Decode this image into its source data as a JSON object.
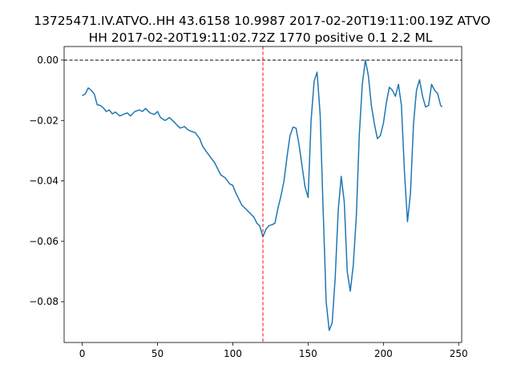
{
  "chart_data": {
    "type": "line",
    "title_lines": [
      "13725471.IV.ATVO..HH 43.6158 10.9987 2017-02-20T19:11:00.19Z ATVO",
      "HH 2017-02-20T19:11:02.72Z 1770 positive 0.1 2.2 ML"
    ],
    "xlabel": "",
    "ylabel": "",
    "xlim": [
      -12,
      252
    ],
    "ylim": [
      -0.0935,
      0.0045
    ],
    "xticks": [
      0,
      50,
      100,
      150,
      200,
      250
    ],
    "xtick_labels": [
      "0",
      "50",
      "100",
      "150",
      "200",
      "250"
    ],
    "yticks": [
      0.0,
      -0.02,
      -0.04,
      -0.06,
      -0.08
    ],
    "ytick_labels": [
      "0.00",
      "−0.02",
      "−0.04",
      "−0.06",
      "−0.08"
    ],
    "grid": false,
    "series_color": "#1f77b4",
    "reference_lines": [
      {
        "orientation": "horizontal",
        "value": 0.0,
        "color": "#000000",
        "style": "dashed"
      },
      {
        "orientation": "vertical",
        "value": 120,
        "color": "#ff0000",
        "style": "dashed"
      }
    ],
    "series": [
      {
        "x": [
          0,
          2,
          4,
          6,
          8,
          10,
          12,
          14,
          16,
          18,
          20,
          22,
          25,
          28,
          30,
          32,
          35,
          38,
          40,
          42,
          45,
          48,
          50,
          52,
          55,
          58,
          60,
          62,
          65,
          68,
          70,
          72,
          75,
          78,
          80,
          82,
          85,
          88,
          90,
          92,
          95,
          98,
          100,
          102,
          104,
          106,
          108,
          110,
          112,
          114,
          116,
          118,
          120,
          122,
          124,
          126,
          128,
          130,
          132,
          134,
          136,
          138,
          140,
          142,
          144,
          146,
          148,
          150,
          152,
          154,
          156,
          158,
          160,
          162,
          164,
          166,
          168,
          170,
          172,
          174,
          176,
          178,
          180,
          182,
          184,
          186,
          188,
          190,
          192,
          194,
          196,
          198,
          200,
          202,
          204,
          206,
          208,
          210,
          212,
          214,
          216,
          218,
          220,
          222,
          224,
          226,
          228,
          230,
          232,
          234,
          236,
          238,
          239
        ],
        "y": [
          -0.0118,
          -0.0112,
          -0.0092,
          -0.01,
          -0.0112,
          -0.0148,
          -0.015,
          -0.0158,
          -0.017,
          -0.0165,
          -0.0178,
          -0.0172,
          -0.0185,
          -0.0178,
          -0.0175,
          -0.0185,
          -0.017,
          -0.0165,
          -0.017,
          -0.016,
          -0.0175,
          -0.018,
          -0.017,
          -0.019,
          -0.02,
          -0.019,
          -0.02,
          -0.021,
          -0.0225,
          -0.022,
          -0.023,
          -0.0235,
          -0.024,
          -0.026,
          -0.0285,
          -0.03,
          -0.032,
          -0.034,
          -0.036,
          -0.038,
          -0.039,
          -0.041,
          -0.0415,
          -0.044,
          -0.046,
          -0.048,
          -0.049,
          -0.05,
          -0.051,
          -0.052,
          -0.054,
          -0.055,
          -0.0585,
          -0.056,
          -0.0548,
          -0.0545,
          -0.054,
          -0.049,
          -0.045,
          -0.04,
          -0.032,
          -0.025,
          -0.0222,
          -0.0225,
          -0.028,
          -0.035,
          -0.042,
          -0.0455,
          -0.02,
          -0.007,
          -0.004,
          -0.018,
          -0.05,
          -0.08,
          -0.0895,
          -0.087,
          -0.072,
          -0.05,
          -0.0385,
          -0.047,
          -0.07,
          -0.0765,
          -0.068,
          -0.052,
          -0.025,
          -0.008,
          0.0,
          -0.005,
          -0.015,
          -0.021,
          -0.026,
          -0.025,
          -0.021,
          -0.014,
          -0.009,
          -0.01,
          -0.012,
          -0.008,
          -0.015,
          -0.037,
          -0.0535,
          -0.044,
          -0.021,
          -0.01,
          -0.0065,
          -0.012,
          -0.0155,
          -0.015,
          -0.008,
          -0.01,
          -0.011,
          -0.015,
          -0.0155
        ]
      }
    ]
  }
}
